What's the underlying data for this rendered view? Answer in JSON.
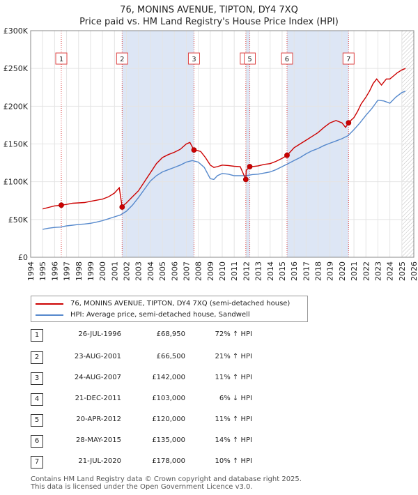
{
  "chart_data": {
    "type": "line",
    "title": "76, MONINS AVENUE, TIPTON, DY4 7XQ",
    "subtitle": "Price paid vs. HM Land Registry's House Price Index (HPI)",
    "xlabel": "",
    "ylabel": "",
    "xlim": [
      1994,
      2026
    ],
    "ylim": [
      0,
      300000
    ],
    "y_ticks": [
      0,
      50000,
      100000,
      150000,
      200000,
      250000,
      300000
    ],
    "y_tick_labels": [
      "£0",
      "£50K",
      "£100K",
      "£150K",
      "£200K",
      "£250K",
      "£300K"
    ],
    "x_ticks": [
      1994,
      1995,
      1996,
      1997,
      1998,
      1999,
      2000,
      2001,
      2002,
      2003,
      2004,
      2005,
      2006,
      2007,
      2008,
      2009,
      2010,
      2011,
      2012,
      2013,
      2014,
      2015,
      2016,
      2017,
      2018,
      2019,
      2020,
      2021,
      2022,
      2023,
      2024,
      2025,
      2026
    ],
    "grid": true,
    "series": [
      {
        "name": "76, MONINS AVENUE, TIPTON, DY4 7XQ (semi-detached house)",
        "color": "#cc0000",
        "x": [
          1995.0,
          1995.5,
          1996.0,
          1996.56,
          1997.0,
          1997.5,
          1998.0,
          1998.5,
          1999.0,
          1999.5,
          2000.0,
          2000.5,
          2001.0,
          2001.4,
          2001.64,
          2001.7,
          2002.0,
          2002.5,
          2003.0,
          2003.5,
          2004.0,
          2004.5,
          2005.0,
          2005.5,
          2006.0,
          2006.5,
          2007.0,
          2007.3,
          2007.64,
          2007.8,
          2008.2,
          2008.6,
          2009.0,
          2009.3,
          2009.6,
          2010.0,
          2010.5,
          2011.0,
          2011.5,
          2011.97,
          2012.0,
          2012.3,
          2012.5,
          2013.0,
          2013.5,
          2014.0,
          2014.5,
          2015.0,
          2015.41,
          2015.6,
          2016.0,
          2016.5,
          2017.0,
          2017.5,
          2018.0,
          2018.5,
          2019.0,
          2019.5,
          2020.0,
          2020.3,
          2020.55,
          2020.8,
          2021.0,
          2021.3,
          2021.6,
          2022.0,
          2022.3,
          2022.6,
          2022.9,
          2023.3,
          2023.7,
          2024.0,
          2024.3,
          2024.6,
          2025.0,
          2025.3
        ],
        "y": [
          64000,
          66000,
          68000,
          68950,
          70000,
          71500,
          72000,
          72500,
          74000,
          75500,
          77000,
          80000,
          85000,
          92000,
          66500,
          68000,
          72000,
          80000,
          88000,
          100000,
          112000,
          124000,
          132000,
          136000,
          139000,
          143000,
          150000,
          152000,
          142000,
          142000,
          140000,
          132000,
          122000,
          119000,
          120000,
          122000,
          121500,
          120500,
          120000,
          103000,
          115000,
          120000,
          120000,
          121000,
          123000,
          124000,
          127000,
          131000,
          135000,
          138000,
          145000,
          150000,
          155000,
          160000,
          165000,
          172000,
          178000,
          181000,
          178000,
          172000,
          178000,
          182000,
          185000,
          193000,
          203000,
          212000,
          220000,
          230000,
          236000,
          228000,
          236000,
          236000,
          240000,
          244000,
          248000,
          250000
        ]
      },
      {
        "name": "HPI: Average price, semi-detached house, Sandwell",
        "color": "#5588cc",
        "x": [
          1995.0,
          1995.5,
          1996.0,
          1996.5,
          1997.0,
          1997.5,
          1998.0,
          1998.5,
          1999.0,
          1999.5,
          2000.0,
          2000.5,
          2001.0,
          2001.5,
          2002.0,
          2002.5,
          2003.0,
          2003.5,
          2004.0,
          2004.5,
          2005.0,
          2005.5,
          2006.0,
          2006.5,
          2007.0,
          2007.5,
          2008.0,
          2008.5,
          2009.0,
          2009.3,
          2009.6,
          2010.0,
          2010.5,
          2011.0,
          2011.5,
          2012.0,
          2012.5,
          2013.0,
          2013.5,
          2014.0,
          2014.5,
          2015.0,
          2015.5,
          2016.0,
          2016.5,
          2017.0,
          2017.5,
          2018.0,
          2018.5,
          2019.0,
          2019.5,
          2020.0,
          2020.5,
          2021.0,
          2021.5,
          2022.0,
          2022.5,
          2023.0,
          2023.5,
          2024.0,
          2024.5,
          2025.0,
          2025.3
        ],
        "y": [
          37000,
          38500,
          39500,
          40000,
          41500,
          42500,
          43500,
          44000,
          45000,
          46500,
          48500,
          51000,
          53500,
          56000,
          61000,
          69000,
          79000,
          90000,
          101000,
          108000,
          113000,
          116000,
          119000,
          122000,
          126000,
          128000,
          126000,
          119000,
          104000,
          103000,
          108000,
          111000,
          110000,
          108000,
          108000,
          108000,
          109500,
          110000,
          111500,
          113000,
          116000,
          120000,
          124000,
          128000,
          132000,
          137000,
          141000,
          144000,
          148000,
          151000,
          154000,
          157000,
          161000,
          169000,
          178000,
          188000,
          197000,
          208000,
          207000,
          204000,
          212000,
          218000,
          220000
        ]
      }
    ],
    "markers": [
      {
        "label": "1",
        "x": 1996.56,
        "y": 68950
      },
      {
        "label": "2",
        "x": 2001.64,
        "y": 66500
      },
      {
        "label": "3",
        "x": 2007.64,
        "y": 142000
      },
      {
        "label": "4",
        "x": 2011.97,
        "y": 103000
      },
      {
        "label": "5",
        "x": 2012.3,
        "y": 120000
      },
      {
        "label": "6",
        "x": 2015.41,
        "y": 135000
      },
      {
        "label": "7",
        "x": 2020.55,
        "y": 178000
      }
    ],
    "shaded_ranges": [
      [
        2001.64,
        2007.64
      ],
      [
        2011.97,
        2012.3
      ],
      [
        2015.41,
        2020.55
      ]
    ],
    "hatched_from": 2025.0
  },
  "legend": {
    "property_label": "76, MONINS AVENUE, TIPTON, DY4 7XQ (semi-detached house)",
    "hpi_label": "HPI: Average price, semi-detached house, Sandwell",
    "property_color": "#cc0000",
    "hpi_color": "#5588cc"
  },
  "sales": [
    {
      "num": "1",
      "date": "26-JUL-1996",
      "price": "£68,950",
      "hpi": "72% ↑ HPI"
    },
    {
      "num": "2",
      "date": "23-AUG-2001",
      "price": "£66,500",
      "hpi": "21% ↑ HPI"
    },
    {
      "num": "3",
      "date": "24-AUG-2007",
      "price": "£142,000",
      "hpi": "11% ↑ HPI"
    },
    {
      "num": "4",
      "date": "21-DEC-2011",
      "price": "£103,000",
      "hpi": "6% ↓ HPI"
    },
    {
      "num": "5",
      "date": "20-APR-2012",
      "price": "£120,000",
      "hpi": "11% ↑ HPI"
    },
    {
      "num": "6",
      "date": "28-MAY-2015",
      "price": "£135,000",
      "hpi": "14% ↑ HPI"
    },
    {
      "num": "7",
      "date": "21-JUL-2020",
      "price": "£178,000",
      "hpi": "10% ↑ HPI"
    }
  ],
  "footer": {
    "line1": "Contains HM Land Registry data © Crown copyright and database right 2025.",
    "line2": "This data is licensed under the Open Government Licence v3.0."
  }
}
